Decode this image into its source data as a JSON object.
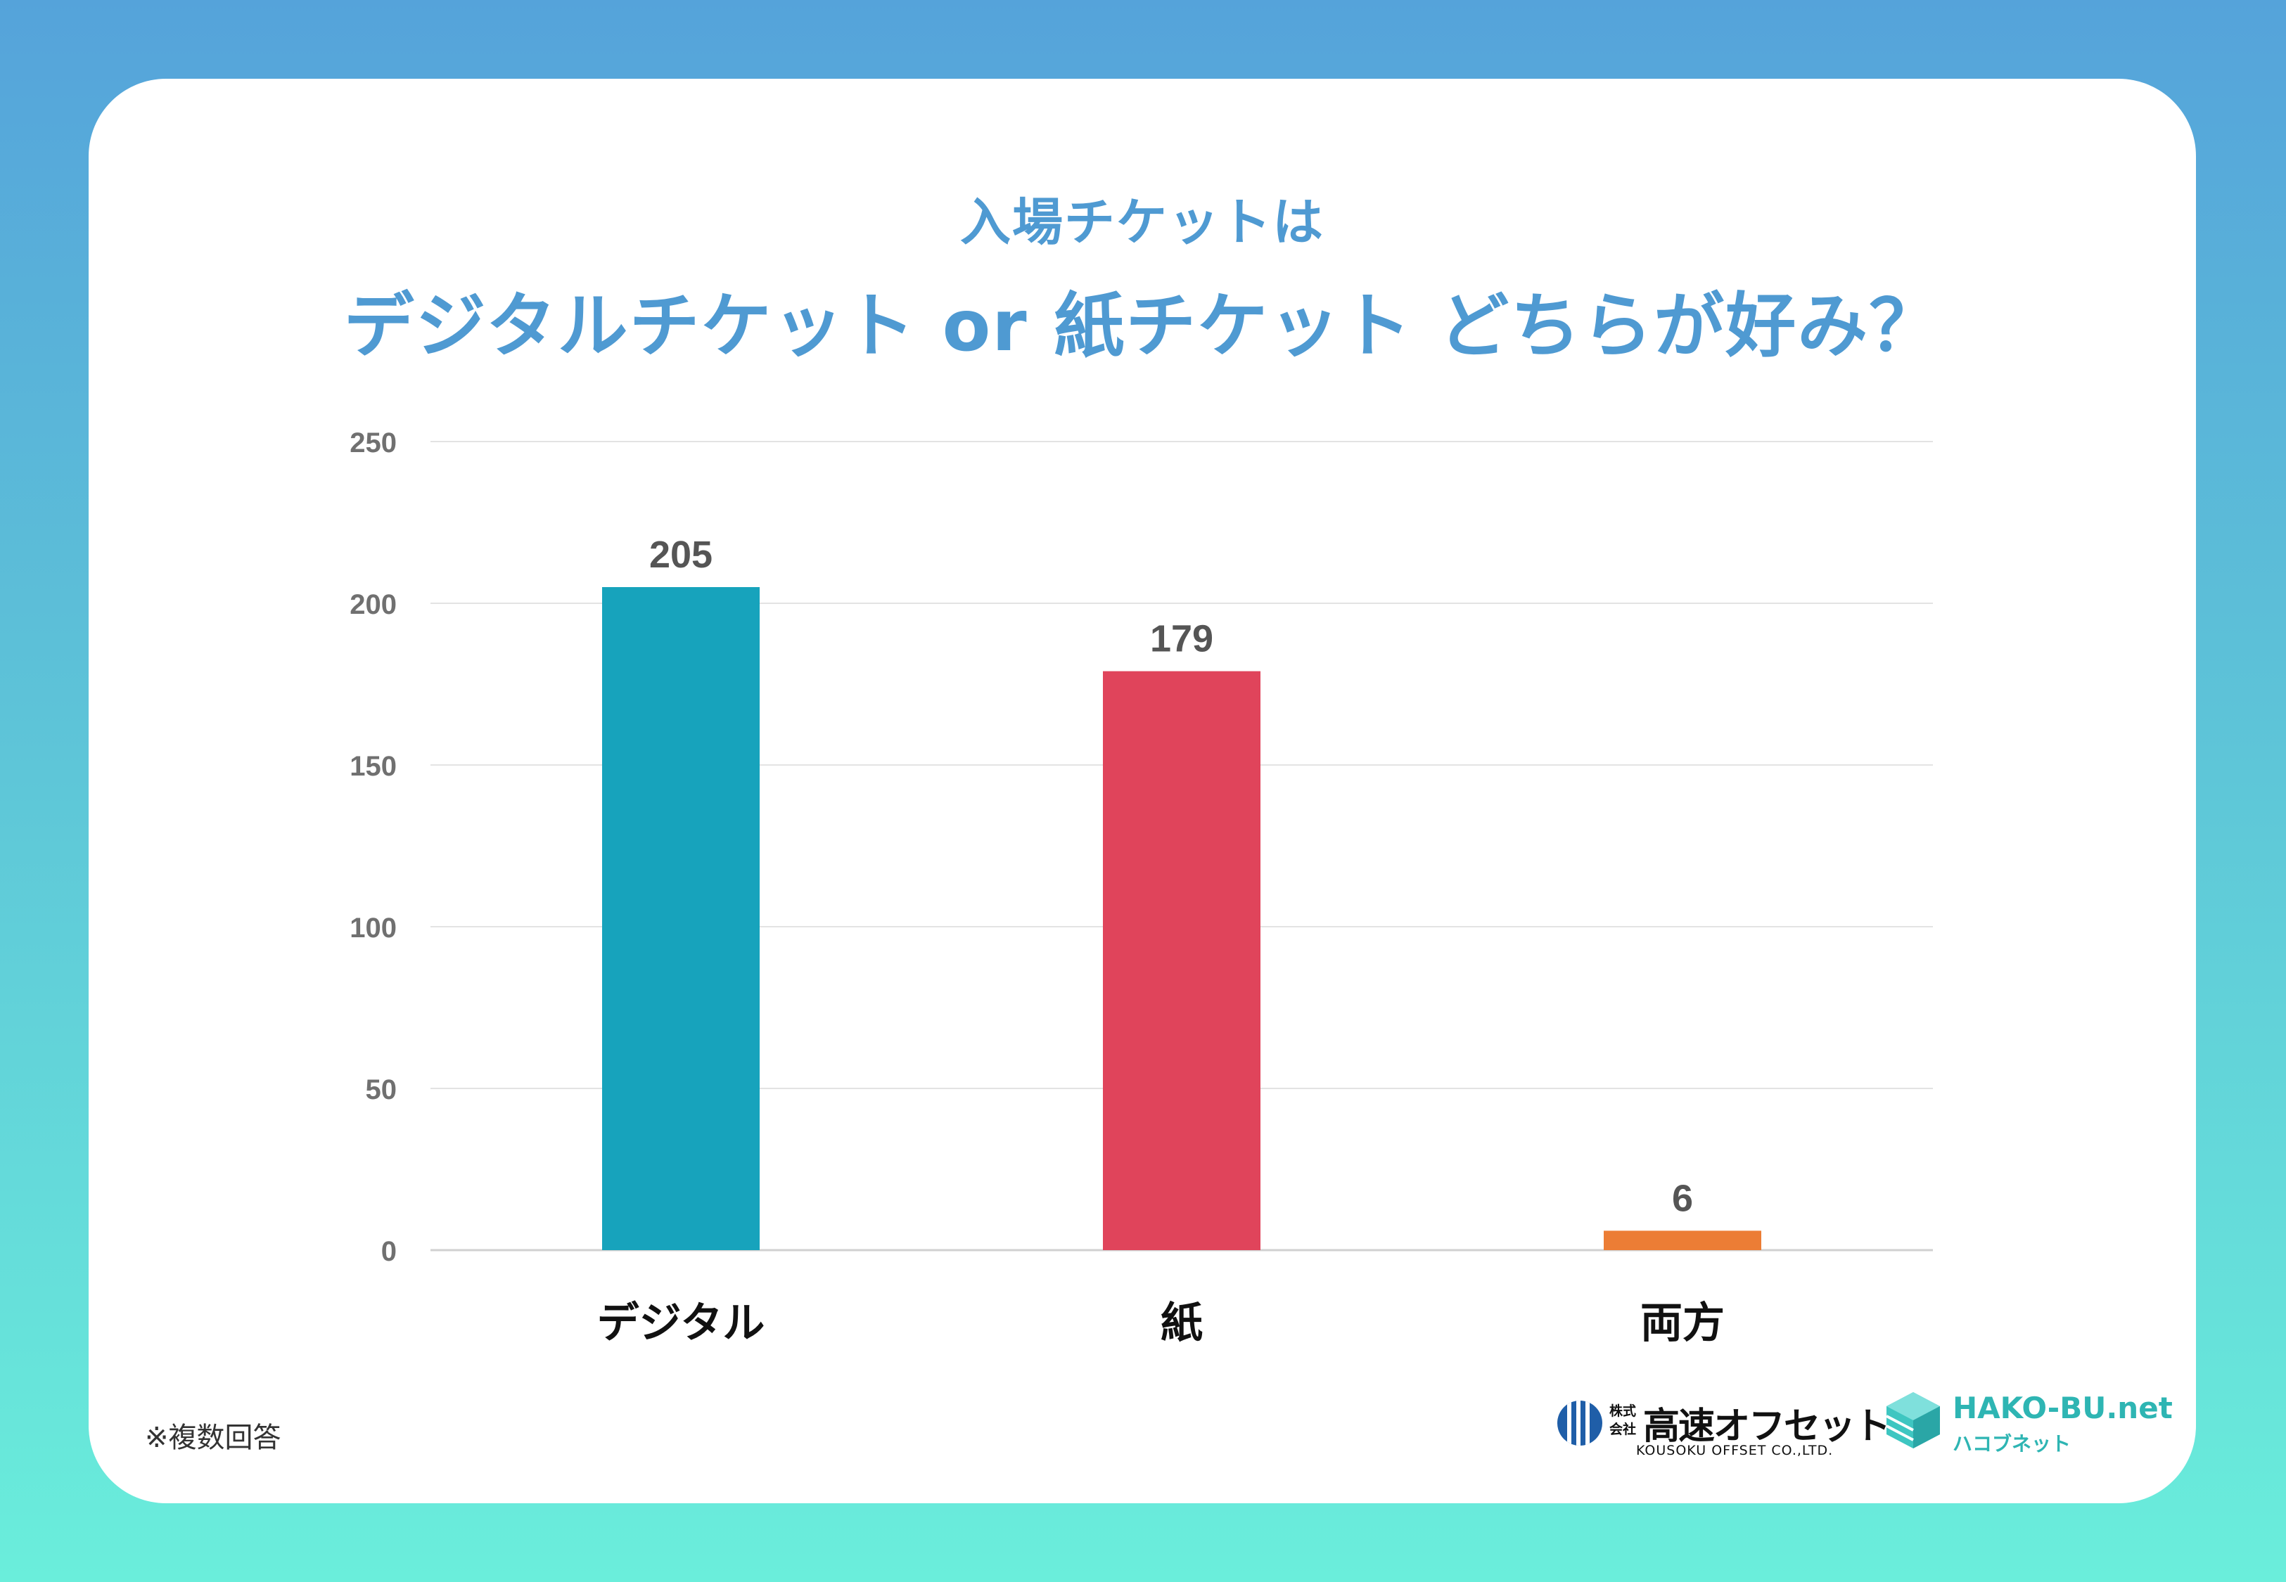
{
  "chart_data": {
    "type": "bar",
    "subtitle": "入場チケットは",
    "title": "デジタルチケット or 紙チケット どちらが好み？",
    "categories": [
      "デジタル",
      "紙",
      "両方"
    ],
    "values": [
      205,
      179,
      6
    ],
    "data_labels": [
      "205",
      "179",
      "6"
    ],
    "colors": [
      "#17a3bc",
      "#e0445b",
      "#ec7d35"
    ],
    "ylim": [
      0,
      250
    ],
    "yticks": [
      "0",
      "50",
      "100",
      "150",
      "200",
      "250"
    ],
    "grid": true,
    "legend": "none"
  },
  "footnote": "※複数回答",
  "logos": {
    "kousoku": {
      "prefix": "株式会社",
      "name": "高速オフセット",
      "english": "KOUSOKU OFFSET CO.,LTD."
    },
    "hakobu": {
      "name": "HAKO-BU.net",
      "kana": "ハコブネット"
    }
  }
}
